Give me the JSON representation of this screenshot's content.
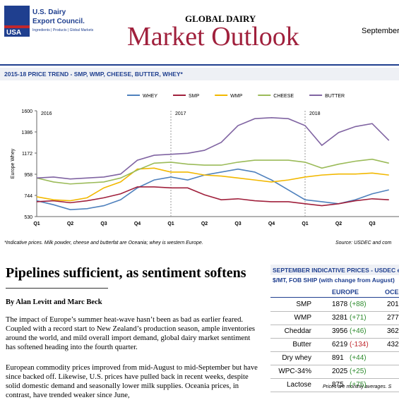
{
  "header": {
    "logo_usa": "USA",
    "logo_line1": "U.S. Dairy",
    "logo_line2": "Export Council.",
    "logo_tagline": "Ingredients | Products | Global Markets",
    "kicker": "GLOBAL DAIRY",
    "title": "Market Outlook",
    "date": "September"
  },
  "chart": {
    "type": "line",
    "title": "2015-18 PRICE TREND - SMP, WMP, CHEESE, BUTTER, WHEY*",
    "y_label": "Europe Whey",
    "categories": [
      "Q1",
      null,
      "Q2",
      null,
      "Q3",
      null,
      "Q4",
      null,
      "Q1",
      null,
      "Q2",
      null,
      "Q3",
      null,
      "Q4",
      null,
      "Q1",
      null,
      "Q2",
      null,
      "Q3",
      null
    ],
    "annotations": [
      "2016",
      "2017",
      "2018"
    ],
    "ylim": [
      530,
      1600
    ],
    "yticks": [
      530,
      744,
      958,
      1172,
      1386,
      1600
    ],
    "series": [
      {
        "name": "WHEY",
        "color": "#4f81bd",
        "values": [
          690,
          650,
          600,
          610,
          640,
          700,
          820,
          900,
          930,
          900,
          950,
          980,
          1010,
          980,
          900,
          800,
          700,
          680,
          660,
          700,
          760,
          800
        ]
      },
      {
        "name": "SMP",
        "color": "#a0203c",
        "values": [
          680,
          690,
          670,
          690,
          720,
          760,
          830,
          830,
          820,
          820,
          750,
          700,
          710,
          690,
          680,
          680,
          660,
          640,
          660,
          690,
          710,
          700
        ]
      },
      {
        "name": "WMP",
        "color": "#f2b800",
        "values": [
          730,
          700,
          690,
          720,
          820,
          880,
          1010,
          1020,
          980,
          980,
          950,
          940,
          920,
          900,
          880,
          900,
          930,
          950,
          960,
          960,
          970,
          950
        ]
      },
      {
        "name": "CHEESE",
        "color": "#9bbb59",
        "values": [
          920,
          880,
          860,
          870,
          880,
          920,
          1000,
          1070,
          1080,
          1060,
          1050,
          1050,
          1080,
          1100,
          1100,
          1100,
          1080,
          1020,
          1060,
          1090,
          1110,
          1070
        ]
      },
      {
        "name": "BUTTER",
        "color": "#8064a2",
        "values": [
          920,
          930,
          910,
          920,
          930,
          960,
          1100,
          1150,
          1160,
          1170,
          1200,
          1280,
          1450,
          1520,
          1530,
          1520,
          1450,
          1250,
          1380,
          1440,
          1470,
          1300
        ]
      }
    ],
    "note": "*Indicative prices. Milk powder, cheese and butterfat are Oceania; whey is western Europe.",
    "source": "Source: USDEC and com"
  },
  "article": {
    "headline": "Pipelines sufficient, as sentiment softens",
    "byline": "By Alan Levitt and Marc Beck",
    "paragraphs": [
      "The impact of Europe’s summer heat-wave hasn’t been as bad as earlier feared. Coupled with a record start to New Zealand’s production season, ample inventories around the world, and mild overall import demand, global dairy market sentiment has softened heading into the fourth quarter.",
      "European commodity prices improved from mid-August to mid-September but have since backed off. Likewise, U.S. prices have pulled back in recent weeks, despite solid domestic demand and seasonally lower milk supplies. Oceania prices, in contrast, have trended weaker since June,"
    ]
  },
  "table": {
    "title": "SEPTEMBER INDICATIVE PRICES - USDEC e",
    "subtitle": "$/MT, FOB SHIP (with change from August)",
    "columns": [
      "EUROPE",
      "OCE"
    ],
    "rows": [
      [
        "SMP",
        "1878",
        "(+88)",
        "201"
      ],
      [
        "WMP",
        "3281",
        "(+71)",
        "277"
      ],
      [
        "Cheddar",
        "3956",
        "(+46)",
        "362"
      ],
      [
        "Butter",
        "6219",
        "(-134)",
        "432"
      ],
      [
        "Dry whey",
        "891",
        "(+44)"
      ],
      [
        "WPC-34%",
        "2025",
        "(+25)"
      ],
      [
        "Lactose",
        "875",
        "(+75)"
      ]
    ],
    "footnote": "Prices are monthly averages. S"
  }
}
